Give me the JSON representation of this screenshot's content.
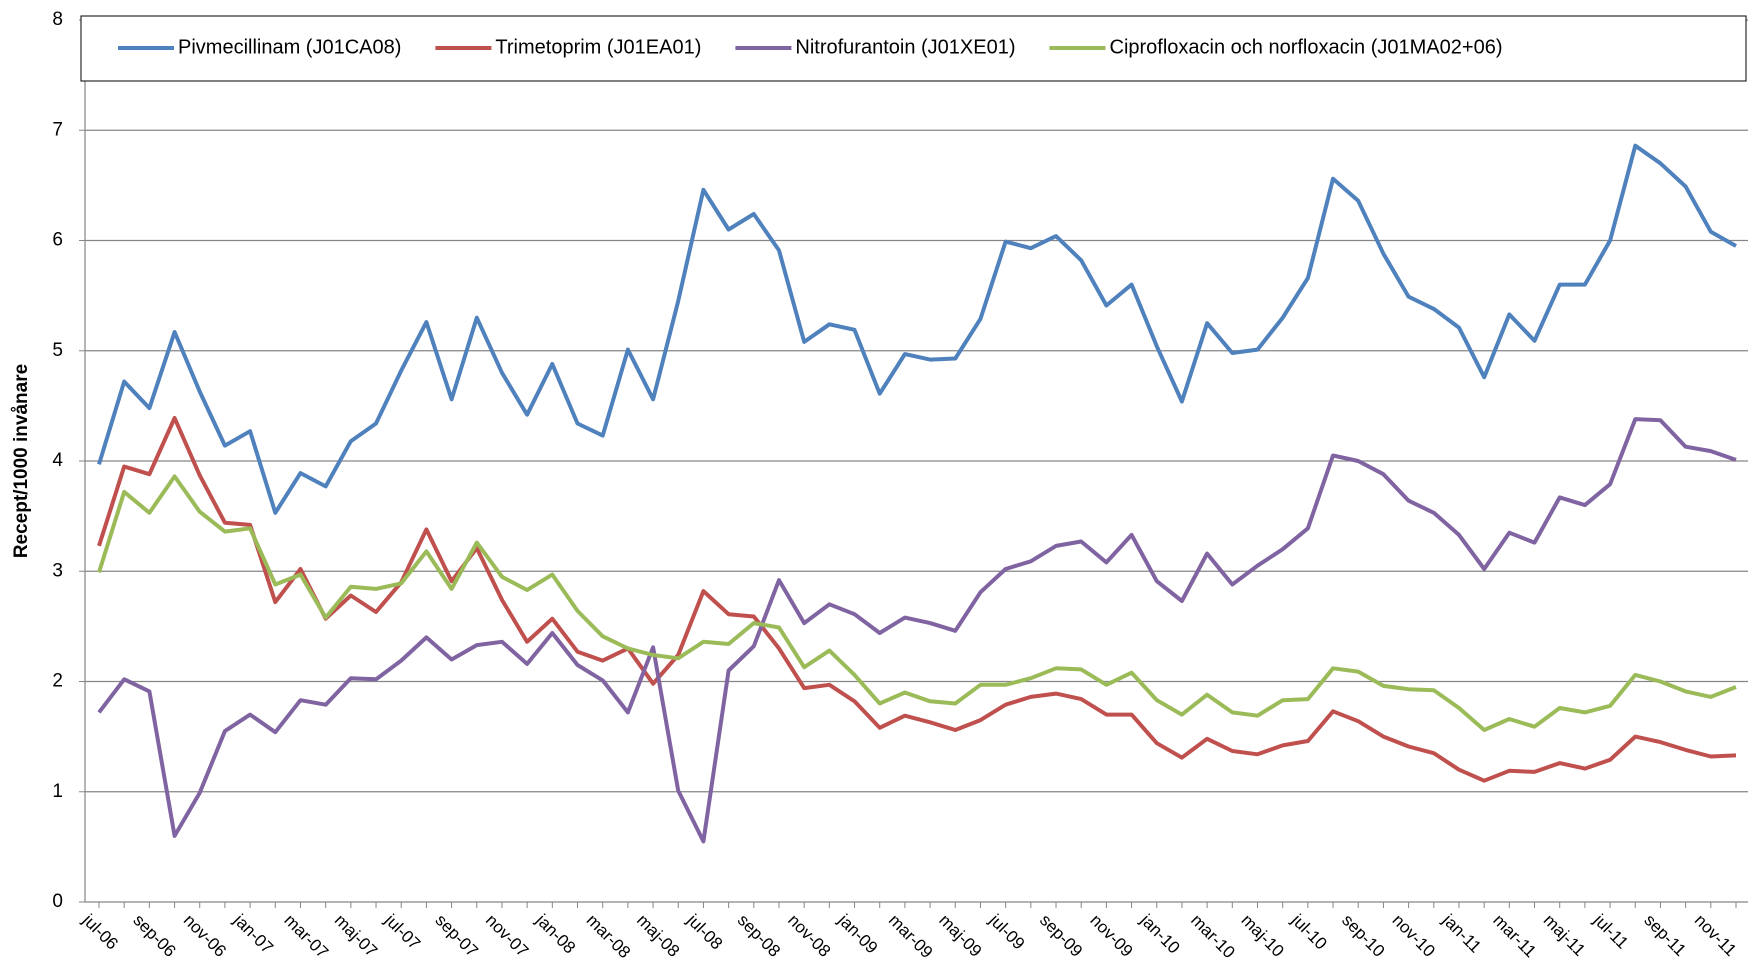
{
  "chart_data": {
    "type": "line",
    "ylabel": "Recept/1000 invånare",
    "categories": [
      "jul-06",
      null,
      "sep-06",
      null,
      "nov-06",
      null,
      "jan-07",
      null,
      "mar-07",
      null,
      "maj-07",
      null,
      "jul-07",
      null,
      "sep-07",
      null,
      "nov-07",
      null,
      "jan-08",
      null,
      "mar-08",
      null,
      "maj-08",
      null,
      "jul-08",
      null,
      "sep-08",
      null,
      "nov-08",
      null,
      "jan-09",
      null,
      "mar-09",
      null,
      "maj-09",
      null,
      "jul-09",
      null,
      "sep-09",
      null,
      "nov-09",
      null,
      "jan-10",
      null,
      "mar-10",
      null,
      "maj-10",
      null,
      "jul-10",
      null,
      "sep-10",
      null,
      "nov-10",
      null,
      "jan-11",
      null,
      "mar-11",
      null,
      "maj-11",
      null,
      "jul-11",
      null,
      "sep-11",
      null,
      "nov-11",
      null
    ],
    "series": [
      {
        "name": "Pivmecillinam (J01CA08)",
        "color": "#4f81bd",
        "values": [
          3.97,
          4.72,
          4.48,
          5.17,
          4.63,
          4.14,
          4.27,
          3.53,
          3.89,
          3.77,
          4.18,
          4.34,
          4.82,
          5.26,
          4.56,
          5.3,
          4.8,
          4.42,
          4.88,
          4.34,
          4.23,
          5.01,
          4.56,
          5.45,
          6.46,
          6.1,
          6.24,
          5.91,
          5.08,
          5.24,
          5.19,
          4.61,
          4.97,
          4.92,
          4.93,
          5.29,
          5.99,
          5.93,
          6.04,
          5.82,
          5.41,
          5.6,
          5.04,
          4.54,
          5.25,
          4.98,
          5.01,
          5.3,
          5.66,
          6.56,
          6.36,
          5.88,
          5.49,
          5.38,
          5.21,
          4.76,
          5.33,
          5.09,
          5.6,
          5.6,
          6.0,
          6.86,
          6.7,
          6.49,
          6.08,
          5.95
        ]
      },
      {
        "name": "Trimetoprim (J01EA01)",
        "color": "#c0504d",
        "values": [
          3.23,
          3.95,
          3.88,
          4.39,
          3.87,
          3.44,
          3.42,
          2.72,
          3.02,
          2.57,
          2.78,
          2.63,
          2.9,
          3.38,
          2.91,
          3.21,
          2.74,
          2.36,
          2.57,
          2.27,
          2.19,
          2.3,
          1.98,
          2.24,
          2.82,
          2.61,
          2.59,
          2.3,
          1.94,
          1.97,
          1.82,
          1.58,
          1.69,
          1.63,
          1.56,
          1.65,
          1.79,
          1.86,
          1.89,
          1.84,
          1.7,
          1.7,
          1.44,
          1.31,
          1.48,
          1.37,
          1.34,
          1.42,
          1.46,
          1.73,
          1.64,
          1.5,
          1.41,
          1.35,
          1.2,
          1.1,
          1.19,
          1.18,
          1.26,
          1.21,
          1.29,
          1.5,
          1.45,
          1.38,
          1.32,
          1.33
        ]
      },
      {
        "name": "Nitrofurantoin (J01XE01)",
        "color": "#8064a2",
        "values": [
          1.72,
          2.02,
          1.91,
          0.6,
          0.99,
          1.55,
          1.7,
          1.54,
          1.83,
          1.79,
          2.03,
          2.02,
          2.19,
          2.4,
          2.2,
          2.33,
          2.36,
          2.16,
          2.44,
          2.15,
          2.01,
          1.72,
          2.31,
          1.01,
          0.55,
          2.1,
          2.32,
          2.92,
          2.53,
          2.7,
          2.61,
          2.44,
          2.58,
          2.53,
          2.46,
          2.81,
          3.02,
          3.09,
          3.23,
          3.27,
          3.08,
          3.33,
          2.91,
          2.73,
          3.16,
          2.88,
          3.05,
          3.2,
          3.39,
          4.05,
          4.0,
          3.88,
          3.64,
          3.53,
          3.33,
          3.02,
          3.35,
          3.26,
          3.67,
          3.6,
          3.79,
          4.38,
          4.37,
          4.13,
          4.09,
          4.01
        ]
      },
      {
        "name": "Ciprofloxacin och norfloxacin (J01MA02+06)",
        "color": "#9bbb59",
        "values": [
          2.99,
          3.72,
          3.53,
          3.86,
          3.54,
          3.36,
          3.39,
          2.88,
          2.97,
          2.58,
          2.86,
          2.84,
          2.89,
          3.18,
          2.84,
          3.26,
          2.95,
          2.83,
          2.97,
          2.64,
          2.41,
          2.3,
          2.24,
          2.21,
          2.36,
          2.34,
          2.53,
          2.49,
          2.13,
          2.28,
          2.06,
          1.8,
          1.9,
          1.82,
          1.8,
          1.97,
          1.97,
          2.03,
          2.12,
          2.11,
          1.97,
          2.08,
          1.83,
          1.7,
          1.88,
          1.72,
          1.69,
          1.83,
          1.84,
          2.12,
          2.09,
          1.96,
          1.93,
          1.92,
          1.76,
          1.56,
          1.66,
          1.59,
          1.76,
          1.72,
          1.78,
          2.06,
          2.0,
          1.91,
          1.86,
          1.95
        ]
      }
    ],
    "ylim": [
      0,
      8
    ],
    "yticks": [
      0,
      1,
      2,
      3,
      4,
      5,
      6,
      7,
      8
    ],
    "grid": true,
    "legend": "top"
  }
}
